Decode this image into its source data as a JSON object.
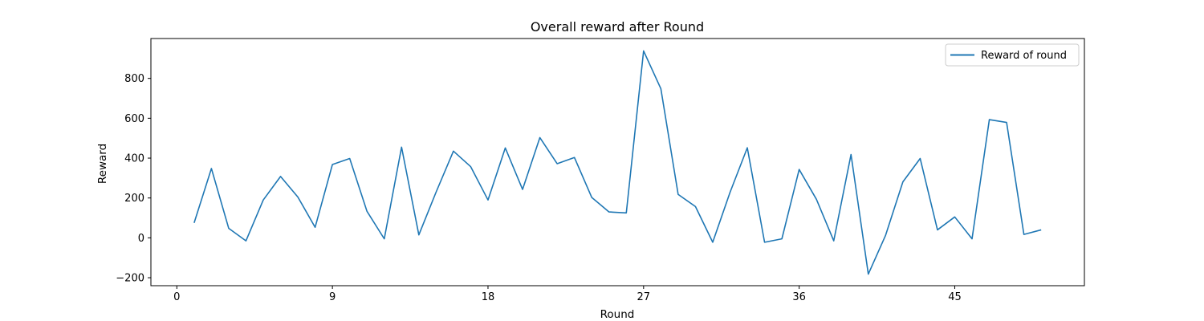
{
  "chart_data": {
    "type": "line",
    "title": "Overall reward after Round",
    "xlabel": "Round",
    "ylabel": "Reward",
    "xlim": [
      -1.5,
      52.5
    ],
    "ylim": [
      -240,
      1000
    ],
    "xticks": [
      0,
      9,
      18,
      27,
      36,
      45
    ],
    "yticks": [
      -200,
      0,
      200,
      400,
      600,
      800
    ],
    "grid": false,
    "legend_position": "top-right",
    "series": [
      {
        "name": "Reward of round",
        "color": "#1f77b4",
        "x": [
          1,
          2,
          3,
          4,
          5,
          6,
          7,
          8,
          9,
          10,
          11,
          12,
          13,
          14,
          15,
          16,
          17,
          18,
          19,
          20,
          21,
          22,
          23,
          24,
          25,
          26,
          27,
          28,
          29,
          30,
          31,
          32,
          33,
          34,
          35,
          36,
          37,
          38,
          39,
          40,
          41,
          42,
          43,
          44,
          45,
          46,
          47,
          48,
          49,
          50
        ],
        "values": [
          75,
          348,
          48,
          -15,
          190,
          308,
          205,
          53,
          368,
          398,
          133,
          -5,
          455,
          15,
          230,
          435,
          357,
          190,
          451,
          243,
          503,
          372,
          403,
          203,
          130,
          125,
          938,
          748,
          218,
          157,
          -22,
          228,
          452,
          -22,
          -5,
          343,
          193,
          -15,
          418,
          -182,
          13,
          281,
          398,
          40,
          105,
          -5,
          593,
          579,
          17,
          40
        ]
      }
    ]
  }
}
